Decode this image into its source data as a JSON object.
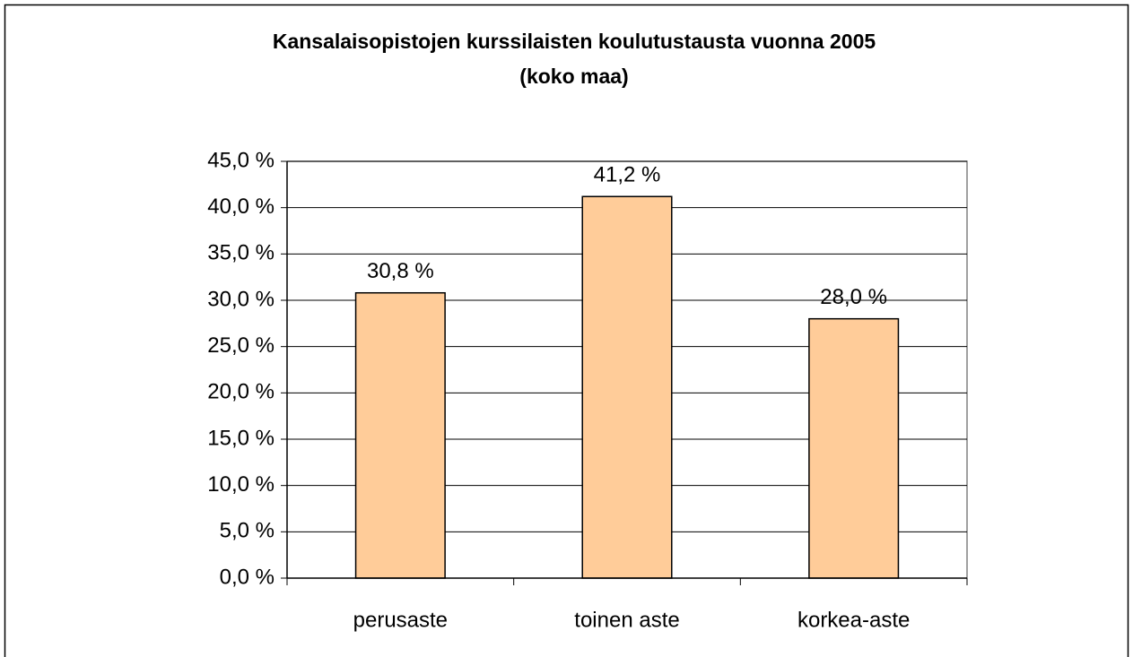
{
  "chart_data": {
    "type": "bar",
    "title": [
      "Kansalaisopistojen kurssilaisten koulutustausta vuonna 2005",
      "(koko maa)"
    ],
    "categories": [
      "perusaste",
      "toinen aste",
      "korkea-aste"
    ],
    "values": [
      30.8,
      41.2,
      28.0
    ],
    "value_labels": [
      "30,8 %",
      "41,2 %",
      "28,0 %"
    ],
    "color": "#ffcc99",
    "ylim": [
      0,
      45
    ],
    "yticks": [
      {
        "value": 0,
        "label": "0,0 %"
      },
      {
        "value": 5,
        "label": "5,0 %"
      },
      {
        "value": 10,
        "label": "10,0 %"
      },
      {
        "value": 15,
        "label": "15,0 %"
      },
      {
        "value": 20,
        "label": "20,0 %"
      },
      {
        "value": 25,
        "label": "25,0 %"
      },
      {
        "value": 30,
        "label": "30,0 %"
      },
      {
        "value": 35,
        "label": "35,0 %"
      },
      {
        "value": 40,
        "label": "40,0 %"
      },
      {
        "value": 45,
        "label": "45,0 %"
      }
    ],
    "grid": true
  }
}
